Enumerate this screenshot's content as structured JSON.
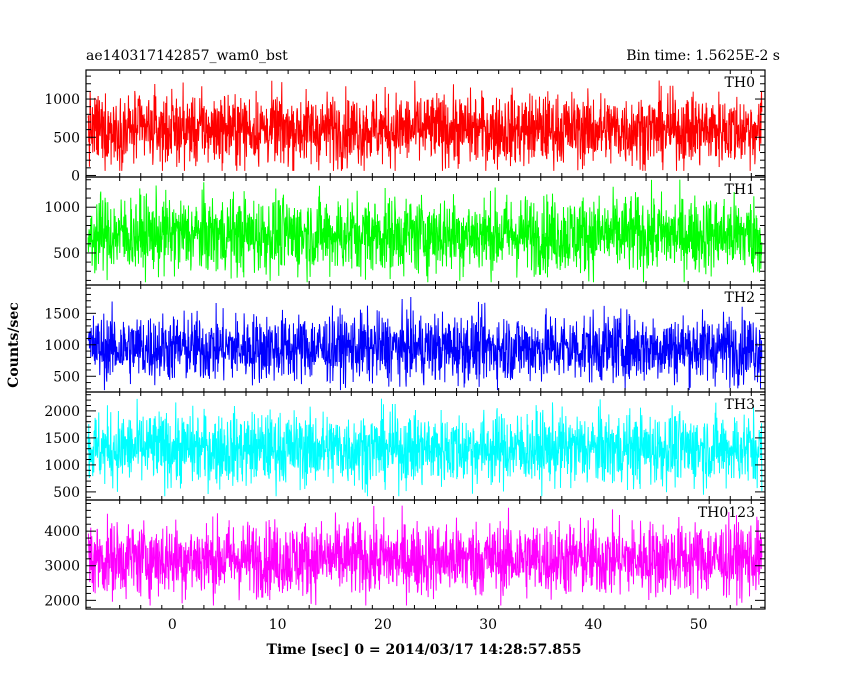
{
  "header": {
    "left_title": "ae140317142857_wam0_bst",
    "right_title": "Bin time: 1.5625E-2 s"
  },
  "chart_data": {
    "type": "line",
    "xlabel": "Time [sec] 0 = 2014/03/17 14:28:57.855",
    "ylabel": "Counts/sec",
    "xlim": [
      -8.2,
      56.3
    ],
    "x_data_range": [
      -8.0,
      56.0
    ],
    "x_ticks": [
      0,
      10,
      20,
      30,
      40,
      50
    ],
    "panels": [
      {
        "name": "TH0",
        "color": "#ff0000",
        "ylim": [
          -20,
          1380
        ],
        "yticks": [
          0,
          500,
          1000
        ],
        "mean": 600,
        "spread": 520,
        "clip_min": 60,
        "clip_max": 1380
      },
      {
        "name": "TH1",
        "color": "#00ff00",
        "ylim": [
          150,
          1330
        ],
        "yticks": [
          500,
          1000
        ],
        "mean": 700,
        "spread": 470,
        "clip_min": 180,
        "clip_max": 1330
      },
      {
        "name": "TH2",
        "color": "#0000ff",
        "ylim": [
          250,
          1950
        ],
        "yticks": [
          500,
          1000,
          1500
        ],
        "mean": 950,
        "spread": 600,
        "clip_min": 280,
        "clip_max": 1950
      },
      {
        "name": "TH3",
        "color": "#00ffff",
        "ylim": [
          350,
          2350
        ],
        "yticks": [
          500,
          1000,
          1500,
          2000
        ],
        "mean": 1300,
        "spread": 750,
        "clip_min": 420,
        "clip_max": 2350
      },
      {
        "name": "TH0123",
        "color": "#ff00ff",
        "ylim": [
          1750,
          4900
        ],
        "yticks": [
          2000,
          3000,
          4000
        ],
        "mean": 3200,
        "spread": 1200,
        "clip_min": 1850,
        "clip_max": 4750
      }
    ]
  }
}
